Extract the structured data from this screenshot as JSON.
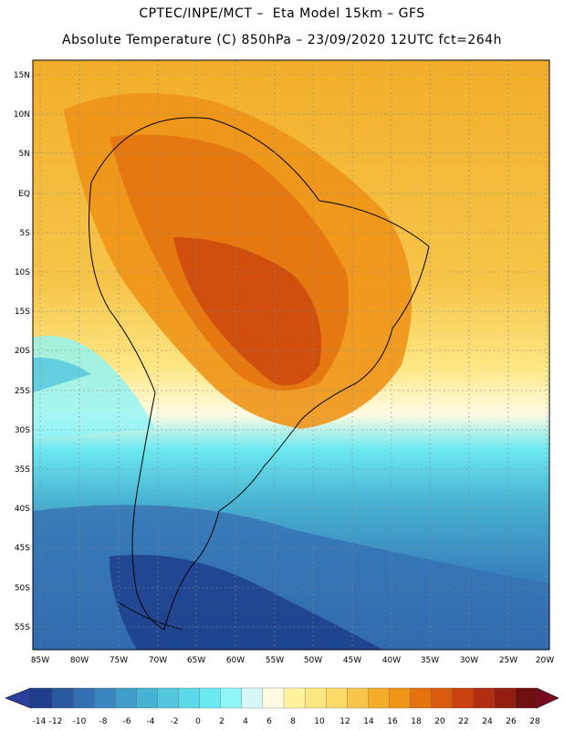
{
  "header": {
    "line1": "CPTEC/INPE/MCT –  Eta Model 15km – GFS",
    "line2": "Absolute Temperature (C) 850hPa – 23/09/2020 12UTC fct=264h"
  },
  "axes": {
    "lat_labels": [
      "15N",
      "10N",
      "5N",
      "EQ",
      "5S",
      "10S",
      "15S",
      "20S",
      "25S",
      "30S",
      "35S",
      "40S",
      "45S",
      "50S",
      "55S"
    ],
    "lon_labels": [
      "85W",
      "80W",
      "75W",
      "70W",
      "65W",
      "60W",
      "55W",
      "50W",
      "45W",
      "40W",
      "35W",
      "30W",
      "25W",
      "20W"
    ]
  },
  "legend": {
    "ticks": [
      "-14",
      "-12",
      "-10",
      "-8",
      "-6",
      "-4",
      "-2",
      "0",
      "2",
      "4",
      "6",
      "8",
      "10",
      "12",
      "14",
      "16",
      "18",
      "20",
      "22",
      "24",
      "26",
      "28"
    ],
    "colors": [
      "#1f3f8c",
      "#2b5aa0",
      "#3470b1",
      "#3a86bf",
      "#409cc9",
      "#48b2d2",
      "#52c6dd",
      "#5dd8e8",
      "#6ce8f0",
      "#8ff4f6",
      "#d6f6f8",
      "#fffbe2",
      "#fff3a0",
      "#fde784",
      "#fbd967",
      "#f6c54a",
      "#f2ae2a",
      "#ee9418",
      "#e4720f",
      "#d75a0e",
      "#c8420f",
      "#b12f10",
      "#951e12",
      "#6e1010"
    ],
    "min_color": "#2a3f9e",
    "max_color": "#7a0a1f"
  }
}
